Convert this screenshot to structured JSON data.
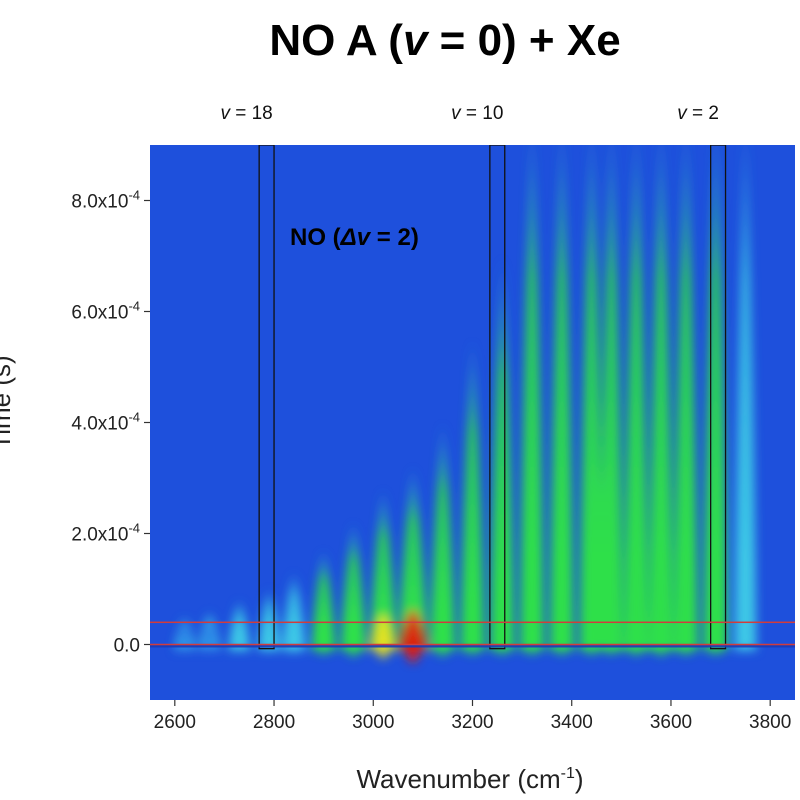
{
  "chart_data": {
    "type": "heatmap",
    "title_parts": [
      "NO A (",
      "v",
      " = 0) + Xe"
    ],
    "annotation_parts": [
      "NO (",
      "Δv",
      " = 2)"
    ],
    "xlabel": "Wavenumber (cm",
    "xlabel_sup": "-1",
    "xlabel_end": ")",
    "ylabel": "Time (s)",
    "xlim": [
      2550,
      3850
    ],
    "ylim": [
      -0.0001,
      0.0009
    ],
    "xticks": [
      2600,
      2800,
      3000,
      3200,
      3400,
      3600,
      3800
    ],
    "yticks": [
      {
        "value": 0.0,
        "label_base": "0.0",
        "label_exp": ""
      },
      {
        "value": 0.0002,
        "label_base": "2.0x10",
        "label_exp": "-4"
      },
      {
        "value": 0.0004,
        "label_base": "4.0x10",
        "label_exp": "-4"
      },
      {
        "value": 0.0006,
        "label_base": "6.0x10",
        "label_exp": "-4"
      },
      {
        "value": 0.0008,
        "label_base": "8.0x10",
        "label_exp": "-4"
      }
    ],
    "vibrational_windows": [
      {
        "label": "v = 18",
        "x_min": 2770,
        "x_max": 2800
      },
      {
        "label": "v = 10",
        "x_min": 3235,
        "x_max": 3265
      },
      {
        "label": "v = 2",
        "x_min": 3680,
        "x_max": 3710
      }
    ],
    "highlight_band": {
      "y_min": 0.0,
      "y_max": 4e-05,
      "color": "#d23c3c"
    },
    "peaks": [
      {
        "x": 2620,
        "intensity": 0.18,
        "decay_time": 5e-05
      },
      {
        "x": 2670,
        "intensity": 0.22,
        "decay_time": 6e-05
      },
      {
        "x": 2730,
        "intensity": 0.3,
        "decay_time": 8e-05
      },
      {
        "x": 2790,
        "intensity": 0.35,
        "decay_time": 0.0001
      },
      {
        "x": 2840,
        "intensity": 0.42,
        "decay_time": 0.00013
      },
      {
        "x": 2900,
        "intensity": 0.48,
        "decay_time": 0.00017
      },
      {
        "x": 2960,
        "intensity": 0.6,
        "decay_time": 0.00022
      },
      {
        "x": 3020,
        "intensity": 0.7,
        "decay_time": 0.00028
      },
      {
        "x": 3080,
        "intensity": 0.92,
        "decay_time": 0.00032
      },
      {
        "x": 3140,
        "intensity": 0.58,
        "decay_time": 0.0004
      },
      {
        "x": 3200,
        "intensity": 0.5,
        "decay_time": 0.00055
      },
      {
        "x": 3260,
        "intensity": 0.5,
        "decay_time": 0.0007
      },
      {
        "x": 3320,
        "intensity": 0.5,
        "decay_time": 0.001
      },
      {
        "x": 3380,
        "intensity": 0.5,
        "decay_time": 0.0014
      },
      {
        "x": 3440,
        "intensity": 0.5,
        "decay_time": 0.0016
      },
      {
        "x": 3480,
        "intensity": 0.48,
        "decay_time": 0.0016
      },
      {
        "x": 3530,
        "intensity": 0.55,
        "decay_time": 0.0016
      },
      {
        "x": 3580,
        "intensity": 0.56,
        "decay_time": 0.0016
      },
      {
        "x": 3630,
        "intensity": 0.52,
        "decay_time": 0.0016
      },
      {
        "x": 3690,
        "intensity": 0.5,
        "decay_time": 0.0016
      },
      {
        "x": 3750,
        "intensity": 0.3,
        "decay_time": 0.0016
      }
    ],
    "colors": {
      "background": "#1e50dc",
      "low": "#2a7ae8",
      "mid": "#3cc8e6",
      "green": "#2ee04a",
      "yellow": "#e8e020",
      "red": "#e01a10"
    },
    "grid": false,
    "legend": "none"
  }
}
